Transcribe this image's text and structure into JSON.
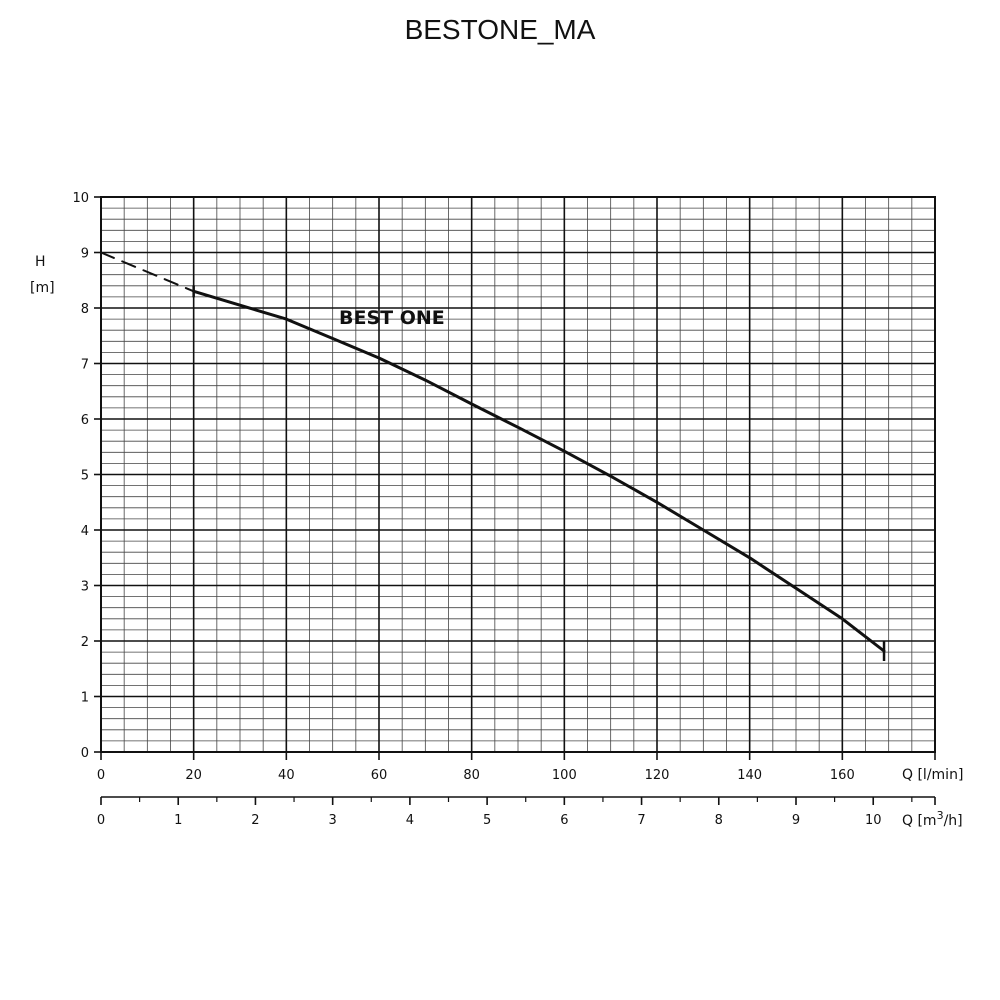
{
  "chart_data": {
    "type": "line",
    "title": "BESTONE_MA",
    "curve_label": "BEST ONE",
    "grid": true,
    "y_axis": {
      "label_symbol": "H",
      "label_unit": "[m]",
      "range": [
        0,
        10
      ],
      "ticks": [
        "0",
        "1",
        "2",
        "3",
        "4",
        "5",
        "6",
        "7",
        "8",
        "9",
        "10"
      ]
    },
    "x_axis_lmin": {
      "label": "Q [l/min]",
      "range": [
        0,
        180
      ],
      "ticks": [
        "0",
        "20",
        "40",
        "60",
        "80",
        "100",
        "120",
        "140",
        "160"
      ],
      "tick_values": [
        0,
        20,
        40,
        60,
        80,
        100,
        120,
        140,
        160
      ]
    },
    "x_axis_m3h": {
      "label_prefix": "Q [m",
      "label_sup": "3",
      "label_suffix": "/h]",
      "ticks": [
        "0",
        "1",
        "2",
        "3",
        "4",
        "5",
        "6",
        "7",
        "8",
        "9",
        "10"
      ],
      "tick_values_lmin": [
        0,
        16.667,
        33.333,
        50,
        66.667,
        83.333,
        100,
        116.667,
        133.333,
        150,
        166.667
      ]
    },
    "series": [
      {
        "style": "dashed",
        "points": [
          [
            0,
            9.0
          ],
          [
            20,
            8.3
          ]
        ]
      },
      {
        "style": "solid",
        "points": [
          [
            20,
            8.3
          ],
          [
            30,
            8.05
          ],
          [
            40,
            7.8
          ],
          [
            50,
            7.45
          ],
          [
            60,
            7.1
          ],
          [
            70,
            6.7
          ],
          [
            80,
            6.27
          ],
          [
            90,
            5.85
          ],
          [
            100,
            5.42
          ],
          [
            110,
            4.97
          ],
          [
            120,
            4.5
          ],
          [
            130,
            4.0
          ],
          [
            140,
            3.5
          ],
          [
            150,
            2.95
          ],
          [
            160,
            2.4
          ],
          [
            169,
            1.82
          ]
        ]
      }
    ],
    "end_marker": {
      "q": 169,
      "h": 1.82
    }
  }
}
